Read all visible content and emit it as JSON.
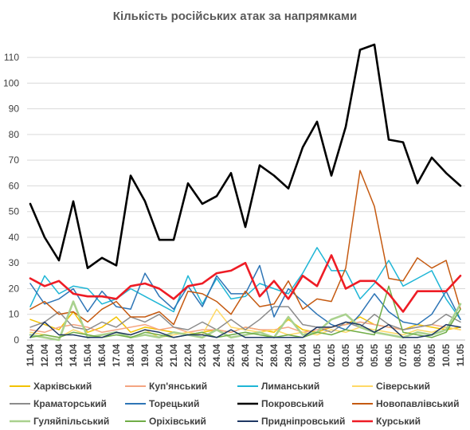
{
  "chart_data": {
    "type": "line",
    "title": "Кількість російських атак за напрямками",
    "xlabel": "",
    "ylabel": "",
    "ylim": [
      0,
      115
    ],
    "yticks": [
      0,
      10,
      20,
      30,
      40,
      50,
      60,
      70,
      80,
      90,
      100,
      110
    ],
    "grid": "horizontal",
    "legend": "bottom",
    "x": [
      "11.04",
      "12.04",
      "13.04",
      "14.04",
      "15.04",
      "16.04",
      "17.04",
      "18.04",
      "19.04",
      "20.04",
      "21.04",
      "22.04",
      "23.04",
      "24.04",
      "25.04",
      "26.04",
      "27.04",
      "28.04",
      "29.04",
      "30.04",
      "01.05",
      "02.05",
      "03.05",
      "04.05",
      "05.05",
      "06.05",
      "07.05",
      "08.05",
      "09.05",
      "10.05",
      "11.05"
    ],
    "series": [
      {
        "name": "Харківський",
        "color": "#f2c200",
        "width": 1.5,
        "values": [
          8,
          6,
          4,
          11,
          3,
          5,
          9,
          3,
          5,
          4,
          3,
          2,
          3,
          4,
          3,
          5,
          4,
          3,
          8,
          4,
          3,
          5,
          6,
          9,
          6,
          5,
          4,
          6,
          5,
          4,
          5
        ]
      },
      {
        "name": "Куп'янський",
        "color": "#f4a582",
        "width": 1.5,
        "values": [
          4,
          3,
          5,
          6,
          5,
          3,
          4,
          5,
          6,
          4,
          5,
          3,
          4,
          4,
          3,
          5,
          4,
          4,
          5,
          3,
          4,
          5,
          6,
          7,
          6,
          5,
          4,
          5,
          6,
          5,
          4
        ]
      },
      {
        "name": "Лиманський",
        "color": "#1fb6d6",
        "width": 1.5,
        "values": [
          13,
          25,
          18,
          21,
          20,
          14,
          16,
          20,
          17,
          14,
          11,
          25,
          14,
          24,
          16,
          17,
          22,
          20,
          18,
          26,
          36,
          27,
          27,
          16,
          22,
          31,
          21,
          24,
          27,
          16,
          8
        ]
      },
      {
        "name": "Сіверський",
        "color": "#ffd966",
        "width": 1.5,
        "values": [
          3,
          2,
          1,
          4,
          2,
          1,
          3,
          2,
          4,
          1,
          2,
          3,
          2,
          12,
          5,
          4,
          3,
          4,
          2,
          3,
          2,
          4,
          3,
          5,
          4,
          3,
          2,
          4,
          3,
          5,
          4
        ]
      },
      {
        "name": "Краматорський",
        "color": "#8c8c8c",
        "width": 1.5,
        "values": [
          5,
          7,
          11,
          5,
          4,
          7,
          5,
          9,
          7,
          10,
          5,
          4,
          7,
          4,
          8,
          4,
          8,
          13,
          13,
          6,
          5,
          3,
          7,
          5,
          10,
          6,
          4,
          5,
          6,
          10,
          7
        ]
      },
      {
        "name": "Торецький",
        "color": "#2e75b6",
        "width": 1.5,
        "values": [
          22,
          14,
          16,
          20,
          11,
          19,
          13,
          12,
          26,
          17,
          12,
          21,
          13,
          25,
          18,
          18,
          29,
          9,
          20,
          15,
          10,
          6,
          4,
          10,
          18,
          11,
          7,
          6,
          10,
          19,
          8
        ]
      },
      {
        "name": "Покровський",
        "color": "#000000",
        "width": 2.6,
        "values": [
          53,
          40,
          31,
          54,
          28,
          32,
          29,
          64,
          54,
          39,
          39,
          61,
          53,
          56,
          65,
          44,
          68,
          64,
          59,
          75,
          85,
          64,
          83,
          113,
          115,
          78,
          77,
          61,
          71,
          65,
          60
        ]
      },
      {
        "name": "Новопавлівський",
        "color": "#c55a11",
        "width": 1.5,
        "values": [
          12,
          15,
          10,
          11,
          7,
          12,
          15,
          9,
          9,
          11,
          6,
          19,
          18,
          15,
          10,
          19,
          13,
          14,
          23,
          12,
          16,
          15,
          28,
          66,
          52,
          24,
          23,
          32,
          28,
          31,
          12
        ]
      },
      {
        "name": "Гуляйпільський",
        "color": "#a9d18e",
        "width": 2.6,
        "values": [
          2,
          1,
          0,
          15,
          1,
          2,
          3,
          1,
          2,
          1,
          3,
          2,
          1,
          4,
          1,
          2,
          3,
          1,
          9,
          2,
          3,
          8,
          10,
          5,
          3,
          2,
          1,
          3,
          2,
          4,
          14
        ]
      },
      {
        "name": "Оріхівський",
        "color": "#70ad47",
        "width": 1.5,
        "values": [
          1,
          2,
          1,
          3,
          2,
          1,
          2,
          1,
          3,
          2,
          1,
          2,
          3,
          1,
          2,
          3,
          2,
          1,
          2,
          1,
          3,
          2,
          4,
          3,
          2,
          21,
          3,
          2,
          1,
          3,
          12
        ]
      },
      {
        "name": "Придніпровський",
        "color": "#1f3864",
        "width": 1.5,
        "values": [
          1,
          7,
          2,
          2,
          1,
          1,
          3,
          2,
          4,
          3,
          1,
          2,
          2,
          1,
          4,
          1,
          1,
          1,
          1,
          1,
          5,
          5,
          7,
          6,
          3,
          6,
          1,
          1,
          2,
          6,
          5
        ]
      },
      {
        "name": "Курський",
        "color": "#ee1c25",
        "width": 2.6,
        "values": [
          24,
          21,
          23,
          18,
          17,
          17,
          16,
          21,
          22,
          20,
          16,
          21,
          22,
          26,
          27,
          30,
          17,
          23,
          16,
          25,
          21,
          33,
          20,
          23,
          23,
          18,
          11,
          19,
          19,
          19,
          25
        ]
      }
    ]
  }
}
